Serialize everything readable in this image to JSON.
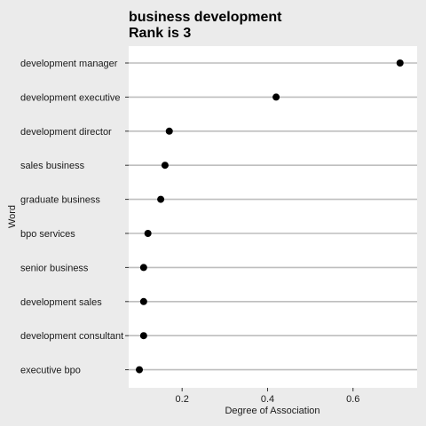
{
  "chart_data": {
    "type": "scatter",
    "title": "business development",
    "subtitle": "Rank is 3",
    "xlabel": "Degree of Association",
    "ylabel": "Word",
    "xlim": [
      0.075,
      0.75
    ],
    "xticks": [
      0.2,
      0.4,
      0.6
    ],
    "xtick_labels": [
      "0.2",
      "0.4",
      "0.6"
    ],
    "grid": "horizontal",
    "legend": "none",
    "categories": [
      "development manager",
      "development executive",
      "development director",
      "sales business",
      "graduate business",
      "bpo services",
      "senior business",
      "development sales",
      "development consultant",
      "executive bpo"
    ],
    "values": [
      0.71,
      0.42,
      0.17,
      0.16,
      0.15,
      0.12,
      0.11,
      0.11,
      0.11,
      0.1
    ],
    "colors": {
      "background": "#ebebeb",
      "panel": "#ffffff",
      "gridline": "#bebebe",
      "point": "#000000",
      "axis": "#333333"
    }
  }
}
